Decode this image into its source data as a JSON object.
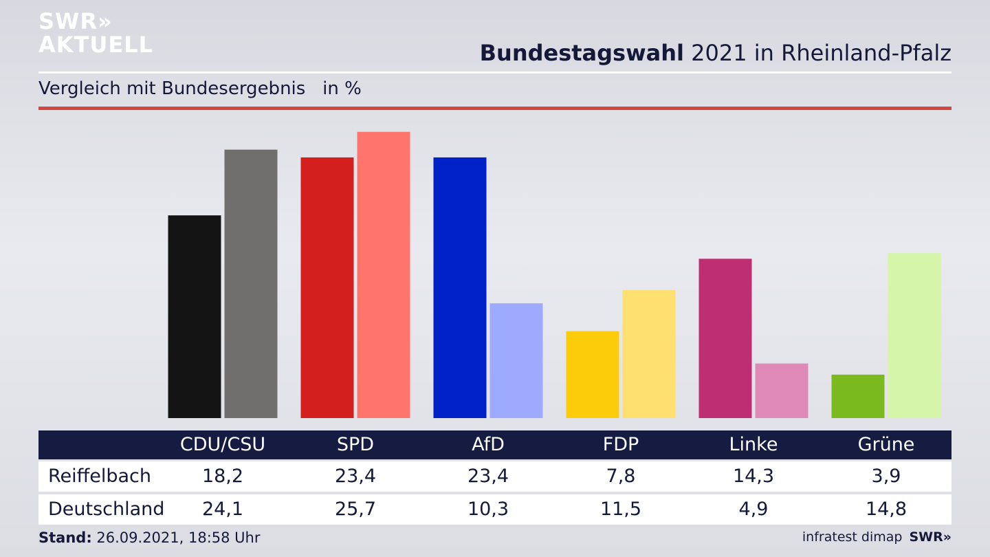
{
  "brand": {
    "line1": "SWR»",
    "line2": "AKTUELL"
  },
  "header": {
    "title_bold": "Bundestagswahl",
    "title_rest": " 2021 in Rheinland-Pfalz",
    "subtitle": "Vergleich mit Bundesergebnis   in %"
  },
  "chart_data": {
    "type": "bar",
    "categories": [
      "CDU/CSU",
      "SPD",
      "AfD",
      "FDP",
      "Linke",
      "Grüne"
    ],
    "series": [
      {
        "name": "Reiffelbach",
        "values": [
          18.2,
          23.4,
          23.4,
          7.8,
          14.3,
          3.9
        ],
        "colors": [
          "#141414",
          "#d41f1f",
          "#0021c8",
          "#fccc0a",
          "#bd2e72",
          "#7aba1f"
        ]
      },
      {
        "name": "Deutschland",
        "values": [
          24.1,
          25.7,
          10.3,
          11.5,
          4.9,
          14.8
        ],
        "colors": [
          "#706f6d",
          "#ff756d",
          "#9eaafd",
          "#fde06f",
          "#df89b8",
          "#d5f5a8"
        ]
      }
    ],
    "ylim": [
      0,
      26
    ]
  },
  "table": {
    "headers": [
      "CDU/CSU",
      "SPD",
      "AfD",
      "FDP",
      "Linke",
      "Grüne"
    ],
    "rows": [
      {
        "label": "Reiffelbach",
        "values": [
          "18,2",
          "23,4",
          "23,4",
          "7,8",
          "14,3",
          "3,9"
        ]
      },
      {
        "label": "Deutschland",
        "values": [
          "24,1",
          "25,7",
          "10,3",
          "11,5",
          "4,9",
          "14,8"
        ]
      }
    ]
  },
  "footer": {
    "stand_label": "Stand:",
    "stand_value": " 26.09.2021, 18:58 Uhr",
    "source": "infratest dimap",
    "brand": "SWR»"
  }
}
